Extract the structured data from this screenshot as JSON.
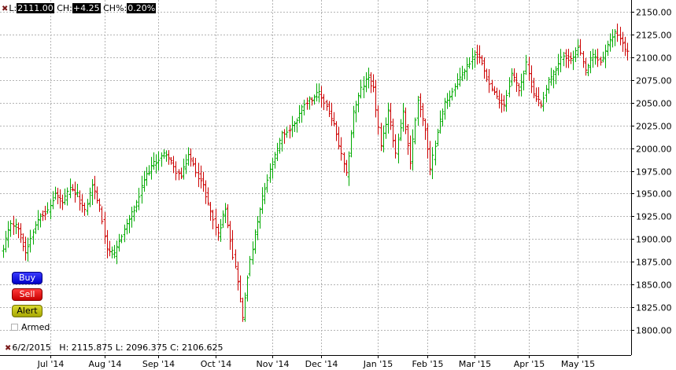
{
  "header": {
    "l_label": "L:",
    "l_value": "2111.00",
    "ch_label": "CH:",
    "ch_value": "+4.25",
    "chp_label": "CH%:",
    "chp_value": "0.20%"
  },
  "buttons": {
    "buy": "Buy",
    "sell": "Sell",
    "alert": "Alert"
  },
  "armed_label": "Armed",
  "footer": {
    "date": "6/2/2015",
    "h_label": "H:",
    "h_value": "2115.875",
    "l_label": "L:",
    "l_value": "2096.375",
    "c_label": "C:",
    "c_value": "2106.625"
  },
  "colors": {
    "up": "#00aa00",
    "down": "#cc0000",
    "grid": "#b4b4b4",
    "background": "#ffffff"
  },
  "chart_data": {
    "type": "ohlc",
    "title": "",
    "xlabel": "",
    "ylabel": "",
    "ylim": [
      1790,
      2160
    ],
    "y_ticks": [
      1800,
      1825,
      1850,
      1875,
      1900,
      1925,
      1950,
      1975,
      2000,
      2025,
      2050,
      2075,
      2100,
      2125,
      2150
    ],
    "y_tick_labels": [
      "1800.00",
      "1825.00",
      "1850.00",
      "1875.00",
      "1900.00",
      "1925.00",
      "1950.00",
      "1975.00",
      "2000.00",
      "2025.00",
      "2050.00",
      "2075.00",
      "2100.00",
      "2125.00",
      "2150.00"
    ],
    "x_tick_labels": [
      "Jul '14",
      "Aug '14",
      "Sep '14",
      "Oct '14",
      "Nov '14",
      "Dec '14",
      "Jan '15",
      "Feb '15",
      "Mar '15",
      "Apr '15",
      "May '15"
    ],
    "x_tick_bar_index": [
      19,
      41,
      63,
      86,
      109,
      129,
      152,
      172,
      191,
      213,
      233
    ],
    "grid": true,
    "bar_count": 254,
    "anchors": [
      [
        0,
        1888
      ],
      [
        3,
        1918
      ],
      [
        6,
        1912
      ],
      [
        9,
        1885
      ],
      [
        12,
        1910
      ],
      [
        15,
        1928
      ],
      [
        18,
        1930
      ],
      [
        21,
        1950
      ],
      [
        24,
        1940
      ],
      [
        27,
        1955
      ],
      [
        30,
        1948
      ],
      [
        33,
        1930
      ],
      [
        36,
        1960
      ],
      [
        39,
        1935
      ],
      [
        42,
        1890
      ],
      [
        45,
        1882
      ],
      [
        48,
        1905
      ],
      [
        51,
        1922
      ],
      [
        54,
        1938
      ],
      [
        57,
        1965
      ],
      [
        60,
        1980
      ],
      [
        63,
        1988
      ],
      [
        66,
        1995
      ],
      [
        69,
        1978
      ],
      [
        72,
        1968
      ],
      [
        75,
        1993
      ],
      [
        78,
        1975
      ],
      [
        81,
        1958
      ],
      [
        84,
        1930
      ],
      [
        87,
        1905
      ],
      [
        90,
        1935
      ],
      [
        93,
        1882
      ],
      [
        95,
        1855
      ],
      [
        97,
        1812
      ],
      [
        99,
        1860
      ],
      [
        102,
        1905
      ],
      [
        105,
        1945
      ],
      [
        108,
        1975
      ],
      [
        110,
        1990
      ],
      [
        113,
        2015
      ],
      [
        116,
        2020
      ],
      [
        119,
        2032
      ],
      [
        122,
        2050
      ],
      [
        125,
        2055
      ],
      [
        128,
        2060
      ],
      [
        131,
        2046
      ],
      [
        134,
        2025
      ],
      [
        137,
        1992
      ],
      [
        139,
        1970
      ],
      [
        142,
        2040
      ],
      [
        145,
        2065
      ],
      [
        148,
        2078
      ],
      [
        150,
        2065
      ],
      [
        153,
        2000
      ],
      [
        156,
        2042
      ],
      [
        159,
        1995
      ],
      [
        162,
        2040
      ],
      [
        165,
        1985
      ],
      [
        168,
        2055
      ],
      [
        171,
        2020
      ],
      [
        173,
        1975
      ],
      [
        176,
        2020
      ],
      [
        179,
        2050
      ],
      [
        182,
        2062
      ],
      [
        185,
        2078
      ],
      [
        188,
        2090
      ],
      [
        191,
        2105
      ],
      [
        194,
        2096
      ],
      [
        197,
        2070
      ],
      [
        200,
        2055
      ],
      [
        203,
        2048
      ],
      [
        206,
        2082
      ],
      [
        209,
        2065
      ],
      [
        212,
        2092
      ],
      [
        215,
        2060
      ],
      [
        218,
        2048
      ],
      [
        221,
        2075
      ],
      [
        224,
        2085
      ],
      [
        227,
        2104
      ],
      [
        230,
        2096
      ],
      [
        233,
        2110
      ],
      [
        236,
        2085
      ],
      [
        239,
        2102
      ],
      [
        242,
        2095
      ],
      [
        245,
        2112
      ],
      [
        248,
        2128
      ],
      [
        250,
        2122
      ],
      [
        252,
        2108
      ],
      [
        253,
        2106
      ]
    ],
    "last_bar": {
      "date": "6/2/2015",
      "high": 2115.875,
      "low": 2096.375,
      "close": 2106.625
    }
  }
}
